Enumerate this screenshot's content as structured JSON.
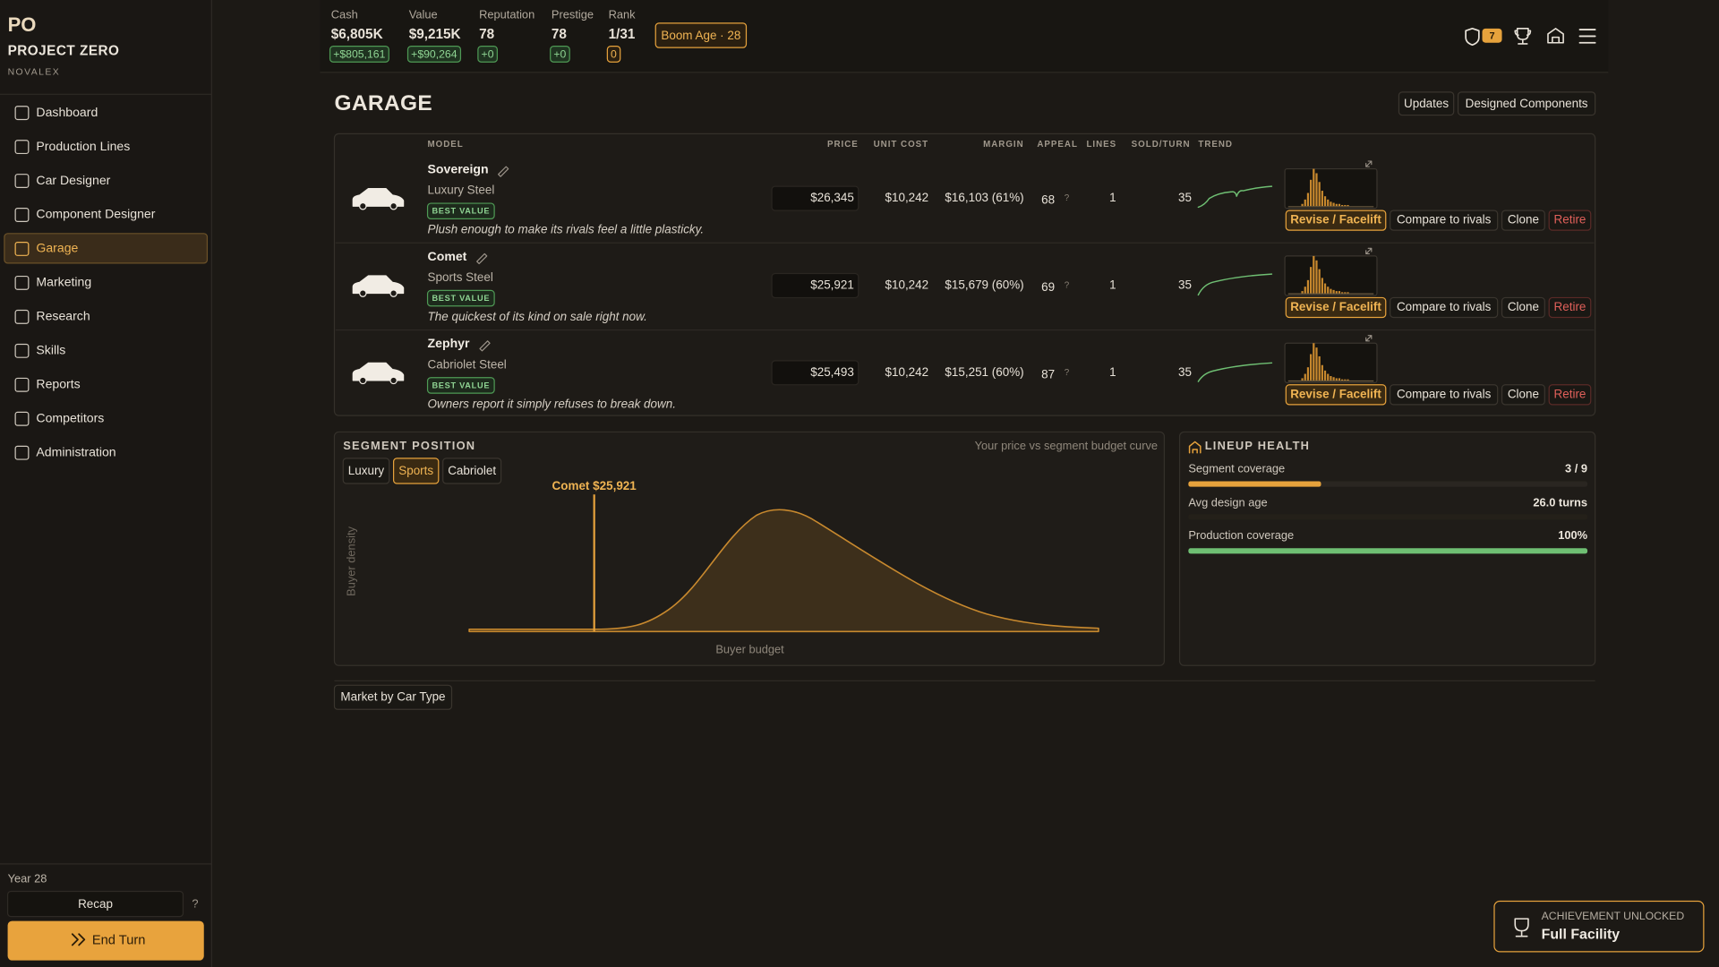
{
  "sidebar": {
    "logo": "PO",
    "title": "PROJECT ZERO",
    "company": "NOVALEX",
    "nav": [
      "Dashboard",
      "Production Lines",
      "Car Designer",
      "Component Designer",
      "Garage",
      "Marketing",
      "Research",
      "Skills",
      "Reports",
      "Competitors",
      "Administration"
    ],
    "year": "Year 28",
    "recap": "Recap",
    "help": "?",
    "end_turn": "End Turn"
  },
  "topbar": {
    "stats": [
      {
        "label": "Cash",
        "value": "$6,805K",
        "delta": "+$805,161"
      },
      {
        "label": "Value",
        "value": "$9,215K",
        "delta": "+$90,264"
      },
      {
        "label": "Reputation",
        "value": "78",
        "delta": "+0"
      },
      {
        "label": "Prestige",
        "value": "78",
        "delta": "+0"
      },
      {
        "label": "Rank",
        "value": "1/31",
        "delta": "0"
      }
    ],
    "era": "Boom Age · 28",
    "alerts": "7"
  },
  "garage": {
    "title": "GARAGE",
    "buttons": [
      "Updates",
      "Designed Components"
    ],
    "columns": [
      "MODEL",
      "PRICE",
      "UNIT COST",
      "MARGIN",
      "APPEAL",
      "LINES",
      "SOLD/TURN",
      "TREND"
    ],
    "appeal_help": "?",
    "actions": [
      "Revise / Facelift",
      "Compare to rivals",
      "Clone",
      "Retire"
    ],
    "rows": [
      {
        "name": "Sovereign",
        "type": "Luxury Steel",
        "badge": "BEST VALUE",
        "tagline": "Plush enough to make its rivals feel a little plasticky.",
        "price": "$26,345",
        "unit_cost": "$10,242",
        "margin": "$16,103 (61%)",
        "appeal": 68,
        "lines": 1,
        "sold": 35
      },
      {
        "name": "Comet",
        "type": "Sports Steel",
        "badge": "BEST VALUE",
        "tagline": "The quickest of its kind on sale right now.",
        "price": "$25,921",
        "unit_cost": "$10,242",
        "margin": "$15,679 (60%)",
        "appeal": 69,
        "lines": 1,
        "sold": 35
      },
      {
        "name": "Zephyr",
        "type": "Cabriolet Steel",
        "badge": "BEST VALUE",
        "tagline": "Owners report it simply refuses to break down.",
        "price": "$25,493",
        "unit_cost": "$10,242",
        "margin": "$15,251 (60%)",
        "appeal": 87,
        "lines": 1,
        "sold": 35
      }
    ]
  },
  "segment": {
    "title": "SEGMENT POSITION",
    "note": "Your price vs segment budget curve",
    "tabs": [
      "Luxury",
      "Sports",
      "Cabriolet"
    ],
    "marker": "Comet $25,921",
    "y_label": "Buyer density",
    "x_label": "Buyer budget"
  },
  "lineup": {
    "title": "LINEUP HEALTH",
    "metrics": [
      {
        "label": "Segment coverage",
        "value": "3 / 9"
      },
      {
        "label": "Avg design age",
        "value": "26.0 turns"
      },
      {
        "label": "Production coverage",
        "value": "100%"
      }
    ]
  },
  "market_button": "Market by Car Type",
  "achievement": {
    "heading": "ACHIEVEMENT UNLOCKED",
    "name": "Full Facility"
  }
}
